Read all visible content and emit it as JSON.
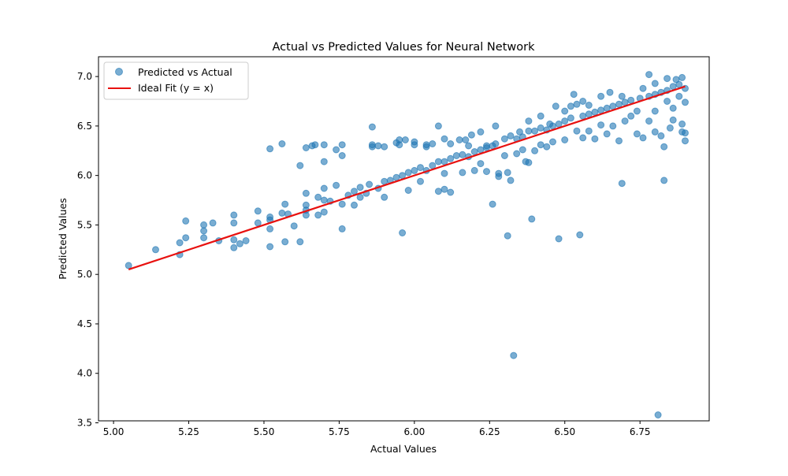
{
  "chart_data": {
    "type": "scatter",
    "title": "Actual vs Predicted Values for Neural Network",
    "xlabel": "Actual Values",
    "ylabel": "Predicted Values",
    "xlim": [
      4.95,
      6.98
    ],
    "ylim": [
      3.52,
      7.2
    ],
    "x_ticks": [
      5.0,
      5.25,
      5.5,
      5.75,
      6.0,
      6.25,
      6.5,
      6.75
    ],
    "x_tick_labels": [
      "5.00",
      "5.25",
      "5.50",
      "5.75",
      "6.00",
      "6.25",
      "6.50",
      "6.75"
    ],
    "y_ticks": [
      3.5,
      4.0,
      4.5,
      5.0,
      5.5,
      6.0,
      6.5,
      7.0
    ],
    "y_tick_labels": [
      "3.5",
      "4.0",
      "4.5",
      "5.0",
      "5.5",
      "6.0",
      "6.5",
      "7.0"
    ],
    "grid": false,
    "legend_position": "upper-left",
    "series": [
      {
        "name": "Predicted vs Actual",
        "kind": "scatter",
        "color": "#1f77b4",
        "opacity": 0.6,
        "points": [
          [
            5.05,
            5.09
          ],
          [
            5.14,
            5.25
          ],
          [
            5.22,
            5.32
          ],
          [
            5.22,
            5.2
          ],
          [
            5.24,
            5.37
          ],
          [
            5.24,
            5.54
          ],
          [
            5.3,
            5.5
          ],
          [
            5.3,
            5.44
          ],
          [
            5.3,
            5.37
          ],
          [
            5.33,
            5.52
          ],
          [
            5.35,
            5.34
          ],
          [
            5.4,
            5.6
          ],
          [
            5.4,
            5.52
          ],
          [
            5.4,
            5.35
          ],
          [
            5.4,
            5.27
          ],
          [
            5.42,
            5.31
          ],
          [
            5.44,
            5.34
          ],
          [
            5.48,
            5.52
          ],
          [
            5.48,
            5.64
          ],
          [
            5.52,
            5.58
          ],
          [
            5.52,
            5.55
          ],
          [
            5.52,
            5.46
          ],
          [
            5.52,
            5.28
          ],
          [
            5.52,
            6.27
          ],
          [
            5.56,
            6.32
          ],
          [
            5.56,
            5.62
          ],
          [
            5.57,
            5.71
          ],
          [
            5.57,
            5.33
          ],
          [
            5.58,
            5.61
          ],
          [
            5.6,
            5.49
          ],
          [
            5.62,
            5.33
          ],
          [
            5.62,
            6.1
          ],
          [
            5.64,
            6.28
          ],
          [
            5.64,
            5.6
          ],
          [
            5.64,
            5.65
          ],
          [
            5.64,
            5.7
          ],
          [
            5.64,
            5.82
          ],
          [
            5.66,
            6.3
          ],
          [
            5.67,
            6.31
          ],
          [
            5.68,
            5.6
          ],
          [
            5.68,
            5.78
          ],
          [
            5.7,
            5.75
          ],
          [
            5.7,
            5.63
          ],
          [
            5.7,
            5.87
          ],
          [
            5.7,
            6.14
          ],
          [
            5.7,
            6.31
          ],
          [
            5.72,
            5.74
          ],
          [
            5.74,
            5.9
          ],
          [
            5.74,
            6.26
          ],
          [
            5.76,
            5.46
          ],
          [
            5.76,
            6.2
          ],
          [
            5.76,
            6.31
          ],
          [
            5.76,
            5.71
          ],
          [
            5.78,
            5.8
          ],
          [
            5.8,
            5.84
          ],
          [
            5.8,
            5.7
          ],
          [
            5.82,
            5.88
          ],
          [
            5.82,
            5.78
          ],
          [
            5.84,
            5.82
          ],
          [
            5.85,
            5.91
          ],
          [
            5.86,
            6.49
          ],
          [
            5.86,
            6.31
          ],
          [
            5.86,
            6.29
          ],
          [
            5.88,
            5.87
          ],
          [
            5.88,
            6.3
          ],
          [
            5.9,
            5.94
          ],
          [
            5.9,
            5.78
          ],
          [
            5.9,
            6.29
          ],
          [
            5.92,
            5.95
          ],
          [
            5.94,
            5.98
          ],
          [
            5.94,
            6.33
          ],
          [
            5.95,
            6.31
          ],
          [
            5.95,
            6.36
          ],
          [
            5.96,
            5.42
          ],
          [
            5.96,
            6.0
          ],
          [
            5.97,
            6.36
          ],
          [
            5.98,
            6.03
          ],
          [
            5.98,
            5.85
          ],
          [
            6.0,
            6.05
          ],
          [
            6.0,
            6.31
          ],
          [
            6.0,
            6.34
          ],
          [
            6.02,
            6.08
          ],
          [
            6.02,
            5.94
          ],
          [
            6.04,
            6.05
          ],
          [
            6.04,
            6.29
          ],
          [
            6.04,
            6.31
          ],
          [
            6.06,
            6.1
          ],
          [
            6.06,
            6.32
          ],
          [
            6.08,
            6.14
          ],
          [
            6.08,
            5.84
          ],
          [
            6.08,
            6.5
          ],
          [
            6.1,
            6.14
          ],
          [
            6.1,
            6.02
          ],
          [
            6.1,
            5.86
          ],
          [
            6.1,
            6.37
          ],
          [
            6.12,
            6.17
          ],
          [
            6.12,
            5.83
          ],
          [
            6.12,
            6.32
          ],
          [
            6.14,
            6.2
          ],
          [
            6.15,
            6.36
          ],
          [
            6.16,
            6.21
          ],
          [
            6.16,
            6.03
          ],
          [
            6.17,
            6.36
          ],
          [
            6.18,
            6.19
          ],
          [
            6.18,
            6.3
          ],
          [
            6.19,
            6.41
          ],
          [
            6.2,
            6.24
          ],
          [
            6.2,
            6.05
          ],
          [
            6.22,
            6.26
          ],
          [
            6.22,
            6.12
          ],
          [
            6.22,
            6.44
          ],
          [
            6.24,
            6.28
          ],
          [
            6.24,
            6.04
          ],
          [
            6.24,
            6.3
          ],
          [
            6.26,
            5.71
          ],
          [
            6.26,
            6.3
          ],
          [
            6.27,
            6.32
          ],
          [
            6.27,
            6.5
          ],
          [
            6.28,
            6.02
          ],
          [
            6.28,
            5.99
          ],
          [
            6.3,
            6.37
          ],
          [
            6.3,
            6.2
          ],
          [
            6.31,
            5.39
          ],
          [
            6.31,
            6.03
          ],
          [
            6.32,
            5.95
          ],
          [
            6.32,
            6.4
          ],
          [
            6.33,
            4.18
          ],
          [
            6.34,
            6.37
          ],
          [
            6.34,
            6.22
          ],
          [
            6.35,
            6.44
          ],
          [
            6.36,
            6.39
          ],
          [
            6.36,
            6.26
          ],
          [
            6.37,
            6.14
          ],
          [
            6.38,
            6.45
          ],
          [
            6.38,
            6.13
          ],
          [
            6.38,
            6.55
          ],
          [
            6.39,
            5.56
          ],
          [
            6.4,
            6.45
          ],
          [
            6.4,
            6.25
          ],
          [
            6.42,
            6.48
          ],
          [
            6.42,
            6.31
          ],
          [
            6.42,
            6.6
          ],
          [
            6.44,
            6.46
          ],
          [
            6.44,
            6.29
          ],
          [
            6.45,
            6.52
          ],
          [
            6.46,
            6.34
          ],
          [
            6.46,
            6.5
          ],
          [
            6.47,
            6.7
          ],
          [
            6.48,
            5.36
          ],
          [
            6.48,
            6.52
          ],
          [
            6.5,
            6.55
          ],
          [
            6.5,
            6.36
          ],
          [
            6.5,
            6.65
          ],
          [
            6.52,
            6.7
          ],
          [
            6.52,
            6.58
          ],
          [
            6.53,
            6.82
          ],
          [
            6.54,
            6.45
          ],
          [
            6.54,
            6.72
          ],
          [
            6.55,
            5.4
          ],
          [
            6.56,
            6.6
          ],
          [
            6.56,
            6.38
          ],
          [
            6.56,
            6.75
          ],
          [
            6.58,
            6.62
          ],
          [
            6.58,
            6.45
          ],
          [
            6.58,
            6.71
          ],
          [
            6.6,
            6.64
          ],
          [
            6.6,
            6.37
          ],
          [
            6.62,
            6.66
          ],
          [
            6.62,
            6.8
          ],
          [
            6.62,
            6.51
          ],
          [
            6.64,
            6.68
          ],
          [
            6.64,
            6.42
          ],
          [
            6.65,
            6.84
          ],
          [
            6.66,
            6.7
          ],
          [
            6.66,
            6.5
          ],
          [
            6.68,
            6.72
          ],
          [
            6.68,
            6.35
          ],
          [
            6.69,
            5.92
          ],
          [
            6.69,
            6.8
          ],
          [
            6.7,
            6.74
          ],
          [
            6.7,
            6.55
          ],
          [
            6.72,
            6.76
          ],
          [
            6.72,
            6.6
          ],
          [
            6.74,
            6.42
          ],
          [
            6.74,
            6.65
          ],
          [
            6.75,
            6.78
          ],
          [
            6.76,
            6.38
          ],
          [
            6.76,
            6.88
          ],
          [
            6.78,
            7.02
          ],
          [
            6.78,
            6.8
          ],
          [
            6.78,
            6.55
          ],
          [
            6.8,
            6.82
          ],
          [
            6.8,
            6.44
          ],
          [
            6.8,
            6.65
          ],
          [
            6.8,
            6.93
          ],
          [
            6.81,
            3.58
          ],
          [
            6.82,
            6.84
          ],
          [
            6.82,
            6.4
          ],
          [
            6.83,
            5.95
          ],
          [
            6.83,
            6.29
          ],
          [
            6.84,
            6.98
          ],
          [
            6.84,
            6.86
          ],
          [
            6.84,
            6.75
          ],
          [
            6.85,
            6.48
          ],
          [
            6.86,
            6.9
          ],
          [
            6.86,
            6.68
          ],
          [
            6.86,
            6.56
          ],
          [
            6.87,
            6.97
          ],
          [
            6.88,
            6.92
          ],
          [
            6.88,
            6.8
          ],
          [
            6.89,
            6.44
          ],
          [
            6.89,
            6.52
          ],
          [
            6.89,
            6.99
          ],
          [
            6.9,
            6.88
          ],
          [
            6.9,
            6.74
          ],
          [
            6.9,
            6.35
          ],
          [
            6.9,
            6.43
          ]
        ]
      },
      {
        "name": "Ideal Fit (y = x)",
        "kind": "line",
        "color": "#e8110f",
        "x": [
          5.05,
          6.9
        ],
        "y": [
          5.05,
          6.9
        ]
      }
    ]
  }
}
